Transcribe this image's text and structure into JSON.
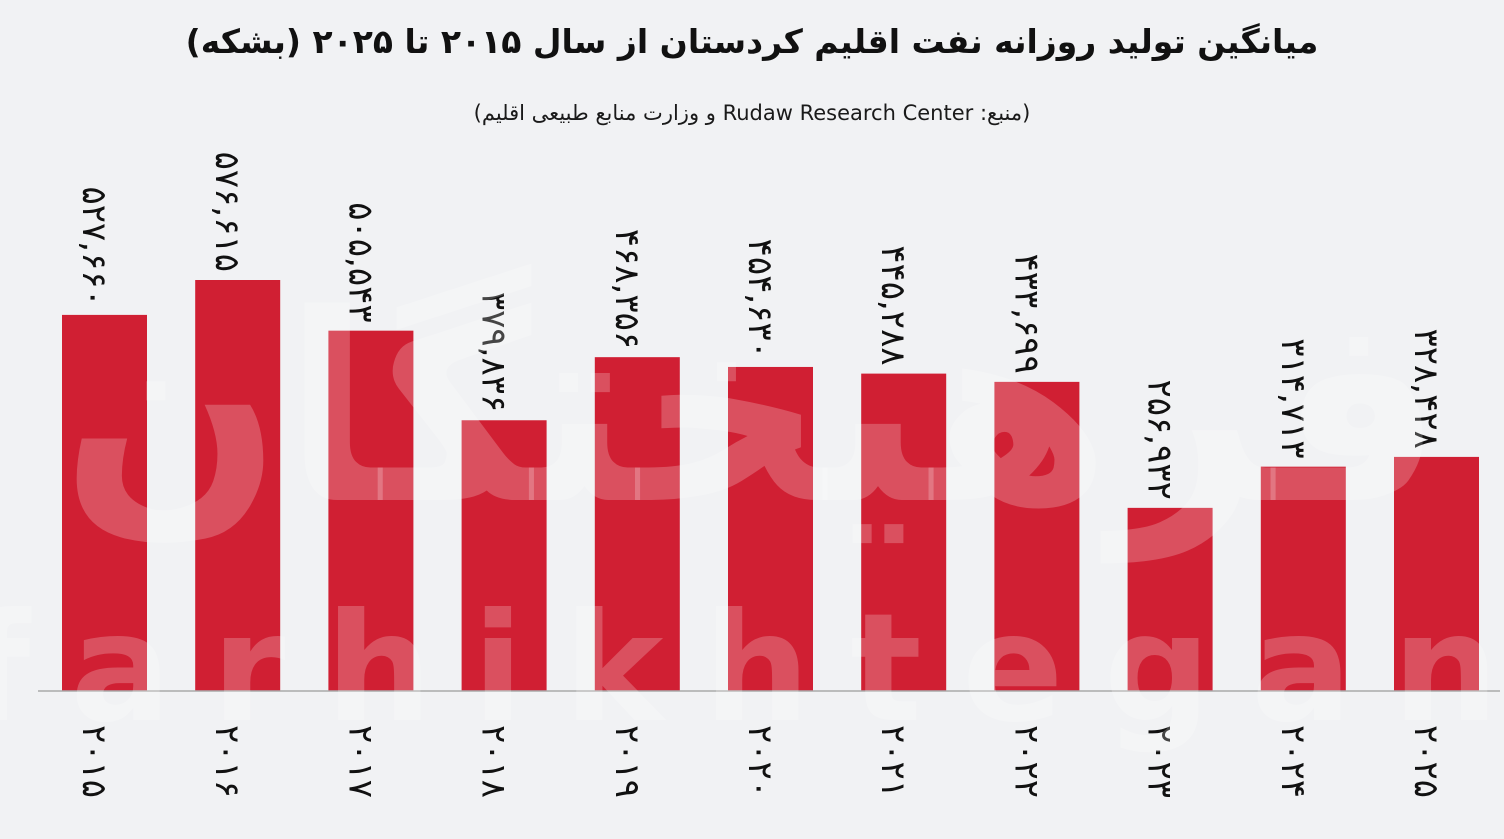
{
  "title": "میانگین تولید روزانه نفت اقلیم کردستان از سال ۲۰۱۵ تا ۲۰۲۵ (بشکه)",
  "subtitle": "(منبع: Rudaw Research Center و وزارت منابع طبیعی اقلیم)",
  "watermark": {
    "fa": "فرهیختگان",
    "en": "farhikhtegan"
  },
  "colors": {
    "bar": "#d01f33",
    "background": "#f1f2f4",
    "axis": "#a9a9a9",
    "text": "#111111"
  },
  "chart_data": {
    "type": "bar",
    "title": "میانگین تولید روزانه نفت اقلیم کردستان از سال ۲۰۱۵ تا ۲۰۲۵ (بشکه)",
    "categories": [
      "۲۰۱۵",
      "۲۰۱۶",
      "۲۰۱۷",
      "۲۰۱۸",
      "۲۰۱۹",
      "۲۰۲۰",
      "۲۰۲۱",
      "۲۰۲۲",
      "۲۰۲۳",
      "۲۰۲۴",
      "۲۰۲۵"
    ],
    "values": [
      527660,
      576615,
      505543,
      379836,
      468356,
      454630,
      445288,
      433699,
      256932,
      314713,
      328428
    ],
    "value_labels": [
      "۵۲۷,۶۶۰",
      "۵۷۶,۶۱۵",
      "۵۰۵,۵۴۳",
      "۳۷۹,۸۳۶",
      "۴۶۸,۳۵۶",
      "۴۵۴,۶۳۰",
      "۴۴۵,۲۸۸",
      "۴۳۳,۶۹۹",
      "۲۵۶,۹۳۲",
      "۳۱۴,۷۱۳",
      "۳۲۸,۴۲۸"
    ],
    "xlabel": "",
    "ylabel": "",
    "ylim": [
      0,
      576615
    ],
    "grid": false,
    "legend": "none"
  }
}
